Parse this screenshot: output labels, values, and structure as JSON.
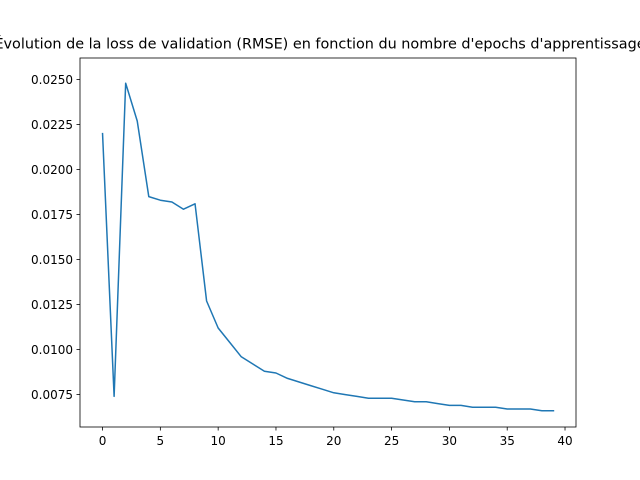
{
  "chart_data": {
    "type": "line",
    "title": "Évolution de la loss de validation (RMSE) en fonction du nombre d'epochs d'apprentissage",
    "xlabel": "",
    "ylabel": "",
    "grid": false,
    "xlim": [
      -1.95,
      40.95
    ],
    "ylim": [
      0.0057,
      0.0262
    ],
    "xticks": [
      0,
      5,
      10,
      15,
      20,
      25,
      30,
      35,
      40
    ],
    "xtick_labels": [
      "0",
      "5",
      "10",
      "15",
      "20",
      "25",
      "30",
      "35",
      "40"
    ],
    "yticks": [
      0.0075,
      0.01,
      0.0125,
      0.015,
      0.0175,
      0.02,
      0.0225,
      0.025
    ],
    "ytick_labels": [
      "0.0075",
      "0.0100",
      "0.0125",
      "0.0150",
      "0.0175",
      "0.0200",
      "0.0225",
      "0.0250"
    ],
    "series": [
      {
        "color": "#1f77b4",
        "x": [
          0,
          1,
          2,
          3,
          4,
          5,
          6,
          7,
          8,
          9,
          10,
          11,
          12,
          13,
          14,
          15,
          16,
          17,
          18,
          19,
          20,
          21,
          22,
          23,
          24,
          25,
          26,
          27,
          28,
          29,
          30,
          31,
          32,
          33,
          34,
          35,
          36,
          37,
          38,
          39
        ],
        "values": [
          0.022,
          0.0074,
          0.0248,
          0.0227,
          0.0185,
          0.0183,
          0.0182,
          0.0178,
          0.0181,
          0.0127,
          0.0112,
          0.0104,
          0.0096,
          0.0092,
          0.0088,
          0.0087,
          0.0084,
          0.0082,
          0.008,
          0.0078,
          0.0076,
          0.0075,
          0.0074,
          0.0073,
          0.0073,
          0.0073,
          0.0072,
          0.0071,
          0.0071,
          0.007,
          0.0069,
          0.0069,
          0.0068,
          0.0068,
          0.0068,
          0.0067,
          0.0067,
          0.0067,
          0.0066,
          0.0066
        ]
      }
    ]
  }
}
